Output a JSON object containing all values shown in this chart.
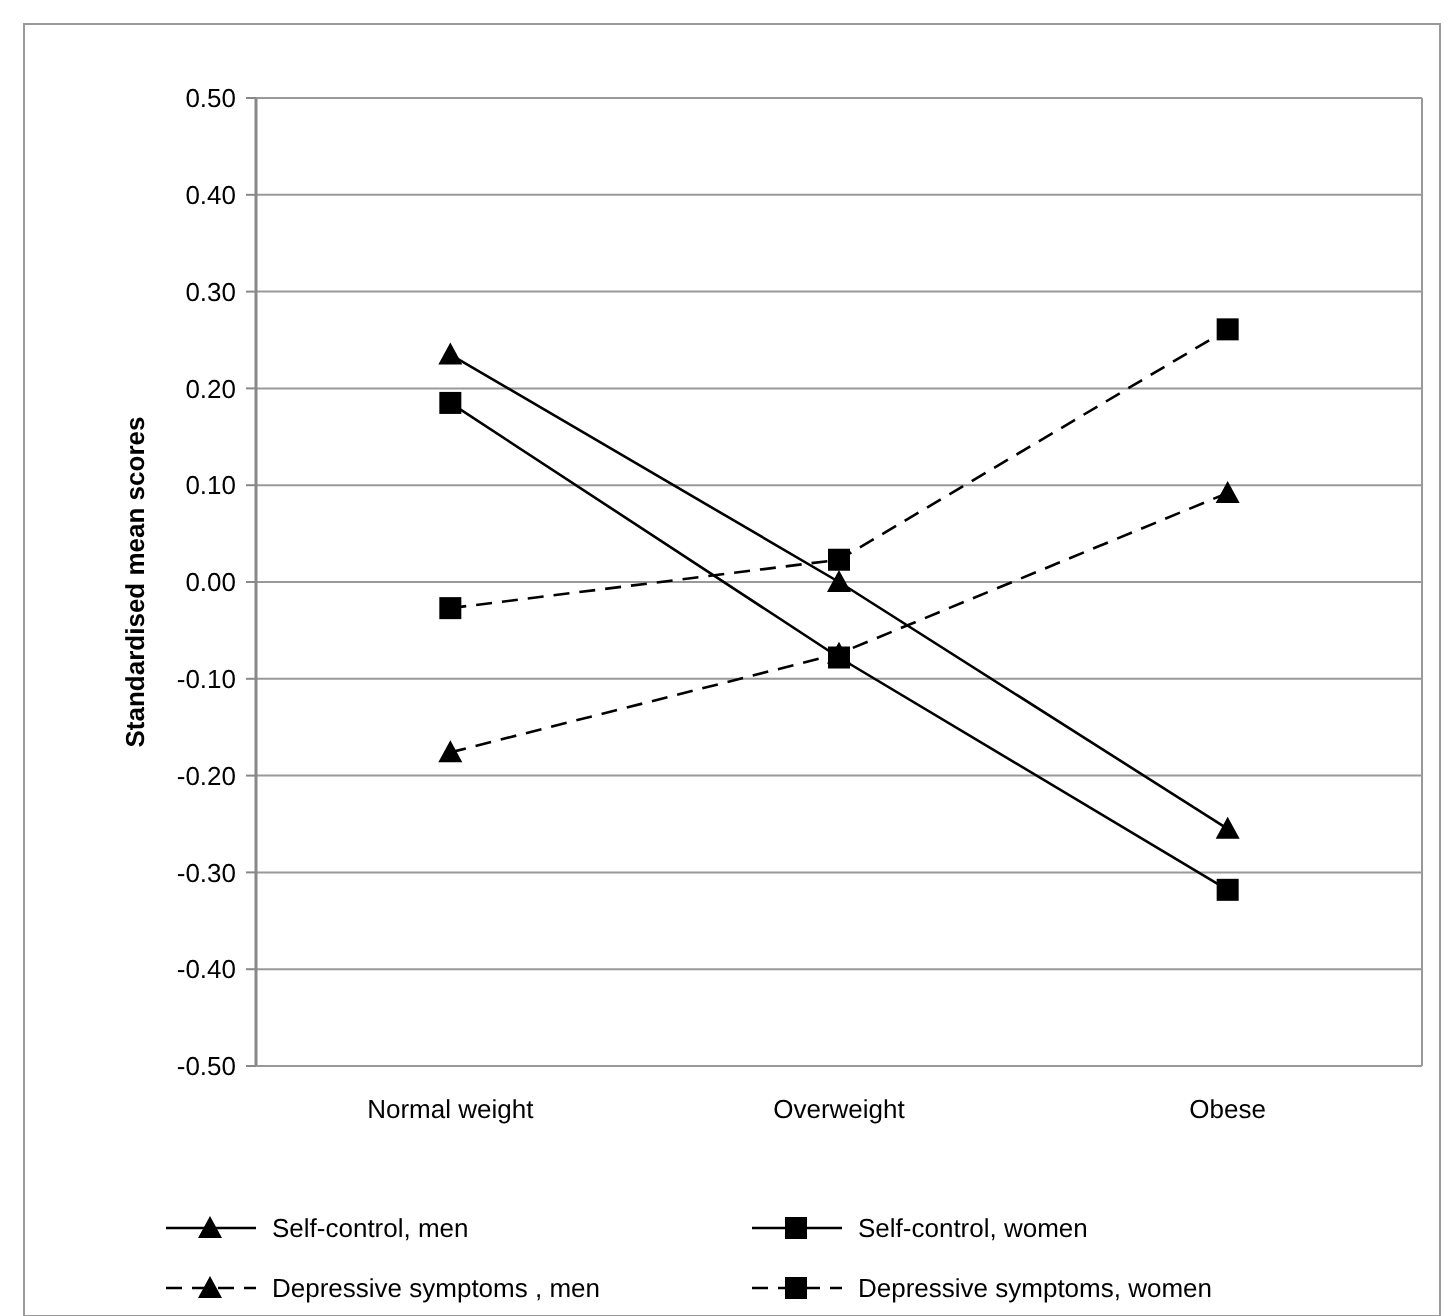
{
  "chart_data": {
    "type": "line",
    "ylabel": "Standardised mean scores",
    "categories": [
      "Normal weight",
      "Overweight",
      "Obese"
    ],
    "series": [
      {
        "name": "Self-control, men",
        "color": "#000000",
        "marker": "triangle",
        "line_style": "solid",
        "values": [
          0.235,
          0.0,
          -0.255
        ]
      },
      {
        "name": "Self-control, women",
        "color": "#000000",
        "marker": "square",
        "line_style": "solid",
        "values": [
          0.185,
          -0.078,
          -0.318
        ]
      },
      {
        "name": "Depressive symptoms , men",
        "color": "#000000",
        "marker": "triangle",
        "line_style": "dashed",
        "values": [
          -0.176,
          -0.074,
          0.092
        ]
      },
      {
        "name": "Depressive symptoms, women",
        "color": "#000000",
        "marker": "square",
        "line_style": "dashed",
        "values": [
          -0.027,
          0.023,
          0.261
        ]
      }
    ],
    "ylim": [
      -0.5,
      0.5
    ],
    "yticks": [
      {
        "value": -0.5,
        "label": "-0.50"
      },
      {
        "value": -0.4,
        "label": "-0.40"
      },
      {
        "value": -0.3,
        "label": "-0.30"
      },
      {
        "value": -0.2,
        "label": "-0.20"
      },
      {
        "value": -0.1,
        "label": "-0.10"
      },
      {
        "value": 0,
        "label": "0.00"
      },
      {
        "value": 0.1,
        "label": "0.10"
      },
      {
        "value": 0.2,
        "label": "0.20"
      },
      {
        "value": 0.3,
        "label": "0.30"
      },
      {
        "value": 0.4,
        "label": "0.40"
      },
      {
        "value": 0.5,
        "label": "0.50"
      }
    ],
    "grid": "y",
    "legend": "bottom"
  }
}
